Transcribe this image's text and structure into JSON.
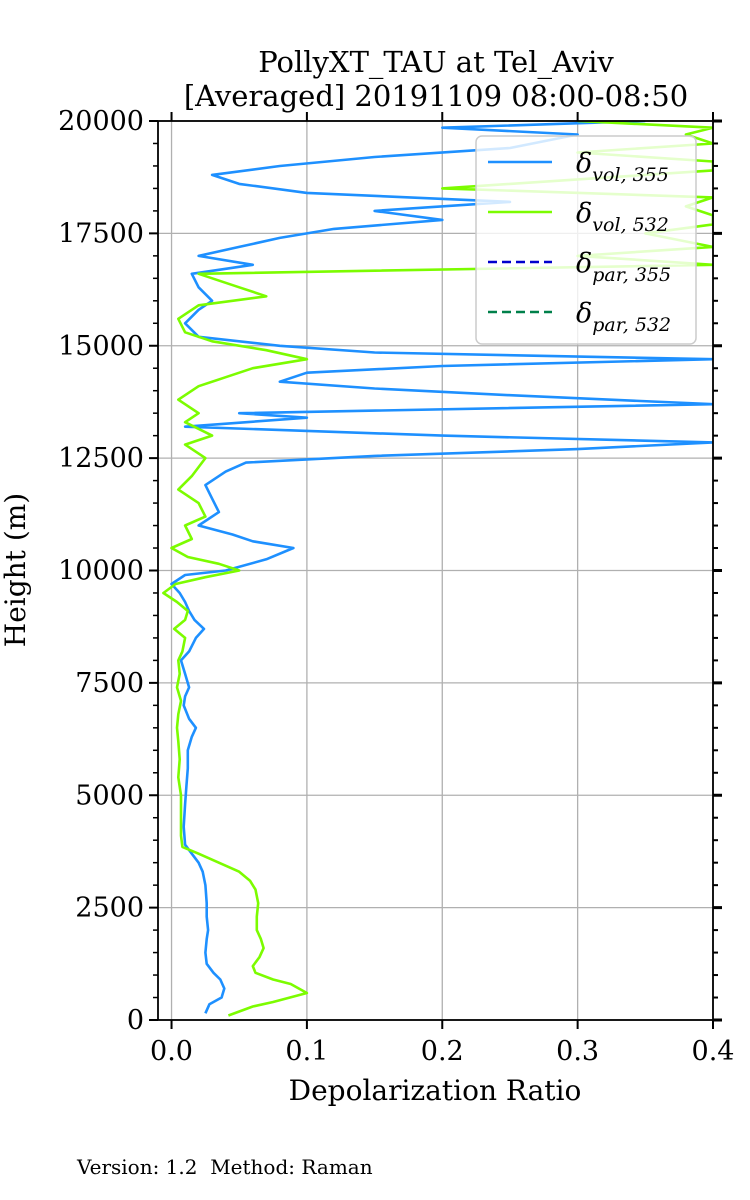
{
  "chart_data": {
    "type": "line",
    "title_line1": "PollyXT_TAU at Tel_Aviv",
    "title_line2": "[Averaged] 20191109 08:00-08:50",
    "xlabel": "Depolarization Ratio",
    "ylabel": "Height (m)",
    "xlim": [
      -0.01,
      0.4
    ],
    "ylim": [
      0,
      20000
    ],
    "xticks": [
      "0.0",
      "0.1",
      "0.2",
      "0.3",
      "0.4"
    ],
    "xtick_values": [
      0.0,
      0.1,
      0.2,
      0.3,
      0.4
    ],
    "yticks": [
      "0",
      "2500",
      "5000",
      "7500",
      "10000",
      "12500",
      "15000",
      "17500",
      "20000"
    ],
    "ytick_values": [
      0,
      2500,
      5000,
      7500,
      10000,
      12500,
      15000,
      17500,
      20000
    ],
    "grid": true,
    "legend_position": "top-right",
    "series": [
      {
        "name": "δvol,355",
        "legend_main": "δ",
        "legend_sub": "vol, 355",
        "color": "#1e90ff",
        "dash": "solid",
        "points": [
          [
            0.025,
            150
          ],
          [
            0.028,
            350
          ],
          [
            0.037,
            500
          ],
          [
            0.039,
            700
          ],
          [
            0.036,
            900
          ],
          [
            0.031,
            1050
          ],
          [
            0.026,
            1250
          ],
          [
            0.025,
            1500
          ],
          [
            0.026,
            1800
          ],
          [
            0.027,
            2000
          ],
          [
            0.026,
            2300
          ],
          [
            0.026,
            2600
          ],
          [
            0.025,
            3000
          ],
          [
            0.023,
            3300
          ],
          [
            0.02,
            3500
          ],
          [
            0.015,
            3700
          ],
          [
            0.01,
            3900
          ],
          [
            0.009,
            4300
          ],
          [
            0.01,
            4800
          ],
          [
            0.011,
            5200
          ],
          [
            0.012,
            5600
          ],
          [
            0.012,
            6000
          ],
          [
            0.015,
            6300
          ],
          [
            0.018,
            6500
          ],
          [
            0.013,
            6700
          ],
          [
            0.009,
            7000
          ],
          [
            0.01,
            7200
          ],
          [
            0.013,
            7400
          ],
          [
            0.01,
            7700
          ],
          [
            0.007,
            8000
          ],
          [
            0.013,
            8200
          ],
          [
            0.018,
            8500
          ],
          [
            0.024,
            8700
          ],
          [
            0.017,
            8900
          ],
          [
            0.013,
            9100
          ],
          [
            0.01,
            9300
          ],
          [
            0.006,
            9500
          ],
          [
            0.0,
            9700
          ],
          [
            0.01,
            9900
          ],
          [
            0.04,
            10000
          ],
          [
            0.07,
            10250
          ],
          [
            0.09,
            10500
          ],
          [
            0.06,
            10650
          ],
          [
            0.045,
            10800
          ],
          [
            0.02,
            11000
          ],
          [
            0.035,
            11300
          ],
          [
            0.03,
            11600
          ],
          [
            0.025,
            11900
          ],
          [
            0.04,
            12200
          ],
          [
            0.055,
            12400
          ],
          [
            0.15,
            12550
          ],
          [
            0.3,
            12700
          ],
          [
            0.4,
            12850
          ],
          [
            0.2,
            13000
          ],
          [
            0.01,
            13200
          ],
          [
            0.1,
            13400
          ],
          [
            0.05,
            13500
          ],
          [
            0.4,
            13700
          ],
          [
            0.25,
            13900
          ],
          [
            0.15,
            14050
          ],
          [
            0.08,
            14200
          ],
          [
            0.1,
            14400
          ],
          [
            0.2,
            14550
          ],
          [
            0.4,
            14700
          ],
          [
            0.15,
            14850
          ],
          [
            0.08,
            15000
          ],
          [
            0.02,
            15200
          ],
          [
            0.01,
            15500
          ],
          [
            0.02,
            15800
          ],
          [
            0.03,
            16000
          ],
          [
            0.02,
            16300
          ],
          [
            0.015,
            16600
          ],
          [
            0.06,
            16800
          ],
          [
            0.02,
            17000
          ],
          [
            0.05,
            17200
          ],
          [
            0.08,
            17400
          ],
          [
            0.12,
            17600
          ],
          [
            0.2,
            17800
          ],
          [
            0.15,
            18000
          ],
          [
            0.25,
            18200
          ],
          [
            0.1,
            18400
          ],
          [
            0.05,
            18600
          ],
          [
            0.03,
            18800
          ],
          [
            0.08,
            19000
          ],
          [
            0.15,
            19200
          ],
          [
            0.25,
            19400
          ],
          [
            0.3,
            19700
          ],
          [
            0.2,
            19850
          ],
          [
            0.35,
            20000
          ]
        ]
      },
      {
        "name": "δvol,532",
        "legend_main": "δ",
        "legend_sub": "vol, 532",
        "color": "#7cfc00",
        "dash": "solid",
        "points": [
          [
            0.042,
            100
          ],
          [
            0.06,
            300
          ],
          [
            0.075,
            400
          ],
          [
            0.1,
            600
          ],
          [
            0.088,
            800
          ],
          [
            0.075,
            900
          ],
          [
            0.062,
            1050
          ],
          [
            0.06,
            1200
          ],
          [
            0.065,
            1400
          ],
          [
            0.068,
            1600
          ],
          [
            0.066,
            1800
          ],
          [
            0.063,
            2000
          ],
          [
            0.063,
            2300
          ],
          [
            0.064,
            2600
          ],
          [
            0.062,
            2900
          ],
          [
            0.058,
            3100
          ],
          [
            0.05,
            3300
          ],
          [
            0.035,
            3500
          ],
          [
            0.02,
            3700
          ],
          [
            0.008,
            3850
          ],
          [
            0.007,
            4100
          ],
          [
            0.007,
            4600
          ],
          [
            0.007,
            5000
          ],
          [
            0.005,
            5400
          ],
          [
            0.006,
            5800
          ],
          [
            0.005,
            6200
          ],
          [
            0.004,
            6500
          ],
          [
            0.005,
            6800
          ],
          [
            0.007,
            7100
          ],
          [
            0.004,
            7400
          ],
          [
            0.006,
            7700
          ],
          [
            0.005,
            8000
          ],
          [
            0.008,
            8200
          ],
          [
            0.01,
            8500
          ],
          [
            0.002,
            8700
          ],
          [
            0.01,
            8900
          ],
          [
            0.012,
            9100
          ],
          [
            0.004,
            9300
          ],
          [
            -0.006,
            9500
          ],
          [
            0.003,
            9700
          ],
          [
            0.025,
            9850
          ],
          [
            0.05,
            10000
          ],
          [
            0.035,
            10150
          ],
          [
            0.012,
            10300
          ],
          [
            0.0,
            10500
          ],
          [
            0.015,
            10700
          ],
          [
            0.01,
            11000
          ],
          [
            0.025,
            11200
          ],
          [
            0.02,
            11500
          ],
          [
            0.005,
            11800
          ],
          [
            0.015,
            12100
          ],
          [
            0.02,
            12300
          ],
          [
            0.025,
            12500
          ],
          [
            0.01,
            12800
          ],
          [
            0.03,
            13000
          ],
          [
            0.01,
            13300
          ],
          [
            0.02,
            13500
          ],
          [
            0.005,
            13800
          ],
          [
            0.02,
            14100
          ],
          [
            0.04,
            14300
          ],
          [
            0.06,
            14500
          ],
          [
            0.1,
            14700
          ],
          [
            0.07,
            14900
          ],
          [
            0.03,
            15100
          ],
          [
            0.01,
            15300
          ],
          [
            0.005,
            15600
          ],
          [
            0.02,
            15900
          ],
          [
            0.07,
            16100
          ],
          [
            0.05,
            16300
          ],
          [
            0.02,
            16600
          ],
          [
            0.4,
            16800
          ],
          [
            0.3,
            17000
          ],
          [
            0.4,
            17200
          ],
          [
            0.35,
            17500
          ],
          [
            0.4,
            17700
          ],
          [
            0.4,
            17900
          ],
          [
            0.38,
            18100
          ],
          [
            0.4,
            18300
          ],
          [
            0.2,
            18500
          ],
          [
            0.3,
            18700
          ],
          [
            0.4,
            18900
          ],
          [
            0.4,
            19100
          ],
          [
            0.3,
            19300
          ],
          [
            0.4,
            19500
          ],
          [
            0.38,
            19700
          ],
          [
            0.4,
            19850
          ],
          [
            0.3,
            20000
          ]
        ]
      },
      {
        "name": "δpar,355",
        "legend_main": "δ",
        "legend_sub": "par, 355",
        "color": "#0000cd",
        "dash": "dashed",
        "points": []
      },
      {
        "name": "δpar,532",
        "legend_main": "δ",
        "legend_sub": "par, 532",
        "color": "#00804a",
        "dash": "dashed",
        "points": []
      }
    ]
  },
  "footer": {
    "version_label": "Version: 1.2  Method: Raman"
  }
}
